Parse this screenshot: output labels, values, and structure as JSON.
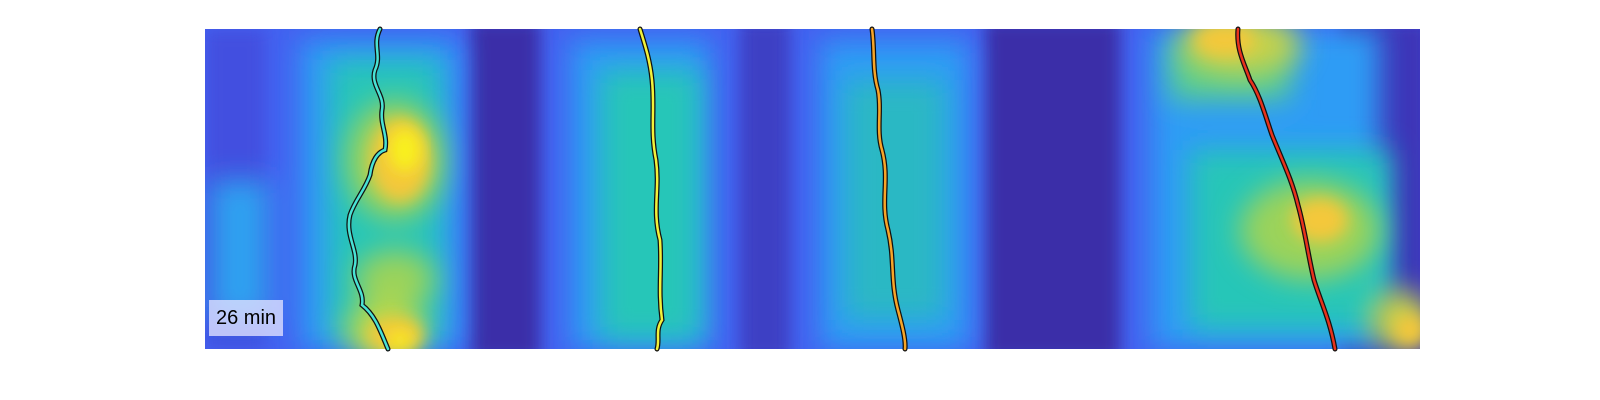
{
  "timestamp_label": "26 min",
  "colors": {
    "track_1": "#49e2d4",
    "track_2": "#f2f23a",
    "track_3": "#f7a528",
    "track_4": "#e8321c",
    "track_outline": "#111111",
    "colormap": [
      "#3c2ea6",
      "#4361f0",
      "#2f9cf5",
      "#25c6b8",
      "#9bd35a",
      "#f4c83a",
      "#f8f11a"
    ]
  },
  "tracks": [
    {
      "name": "track-1",
      "color": "#49e2d4"
    },
    {
      "name": "track-2",
      "color": "#f2f23a"
    },
    {
      "name": "track-3",
      "color": "#f7a528"
    },
    {
      "name": "track-4",
      "color": "#e8321c"
    }
  ]
}
